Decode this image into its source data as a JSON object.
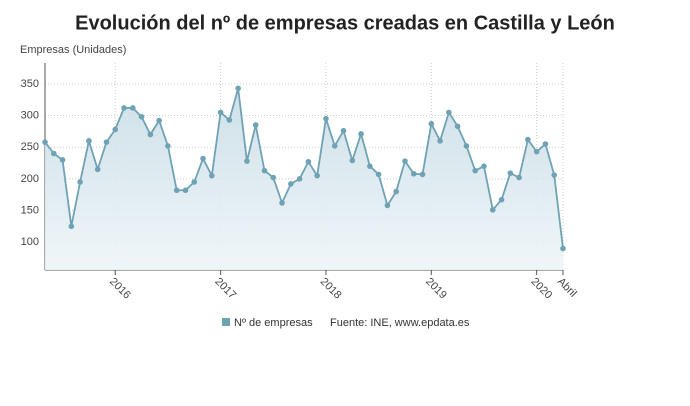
{
  "chart_data": {
    "type": "line",
    "title": "Evolución del nº de empresas creadas en Castilla y León",
    "y_axis_label": "Empresas (Unidades)",
    "source": "Fuente: INE, www.epdata.es",
    "categories": [
      null,
      null,
      null,
      null,
      null,
      null,
      null,
      null,
      "2016",
      null,
      null,
      null,
      null,
      null,
      null,
      null,
      null,
      null,
      null,
      null,
      "2017",
      null,
      null,
      null,
      null,
      null,
      null,
      null,
      null,
      null,
      null,
      null,
      "2018",
      null,
      null,
      null,
      null,
      null,
      null,
      null,
      null,
      null,
      null,
      null,
      "2019",
      null,
      null,
      null,
      null,
      null,
      null,
      null,
      null,
      null,
      null,
      null,
      "2020",
      null,
      null,
      "Abril"
    ],
    "series": [
      {
        "name": "Nº de empresas",
        "color": "#6fa2b4",
        "values": [
          258,
          240,
          230,
          125,
          195,
          260,
          215,
          258,
          278,
          312,
          312,
          298,
          270,
          292,
          252,
          182,
          182,
          195,
          232,
          205,
          305,
          293,
          343,
          228,
          285,
          213,
          202,
          162,
          192,
          200,
          227,
          205,
          295,
          252,
          276,
          229,
          271,
          220,
          207,
          158,
          180,
          228,
          208,
          207,
          287,
          260,
          305,
          283,
          252,
          213,
          220,
          151,
          167,
          209,
          202,
          262,
          243,
          255,
          206,
          90
        ]
      }
    ],
    "ylim": [
      56,
      383
    ],
    "yticks": [
      100,
      150,
      200,
      250,
      300,
      350
    ],
    "grid": true,
    "legend": "bottom"
  }
}
